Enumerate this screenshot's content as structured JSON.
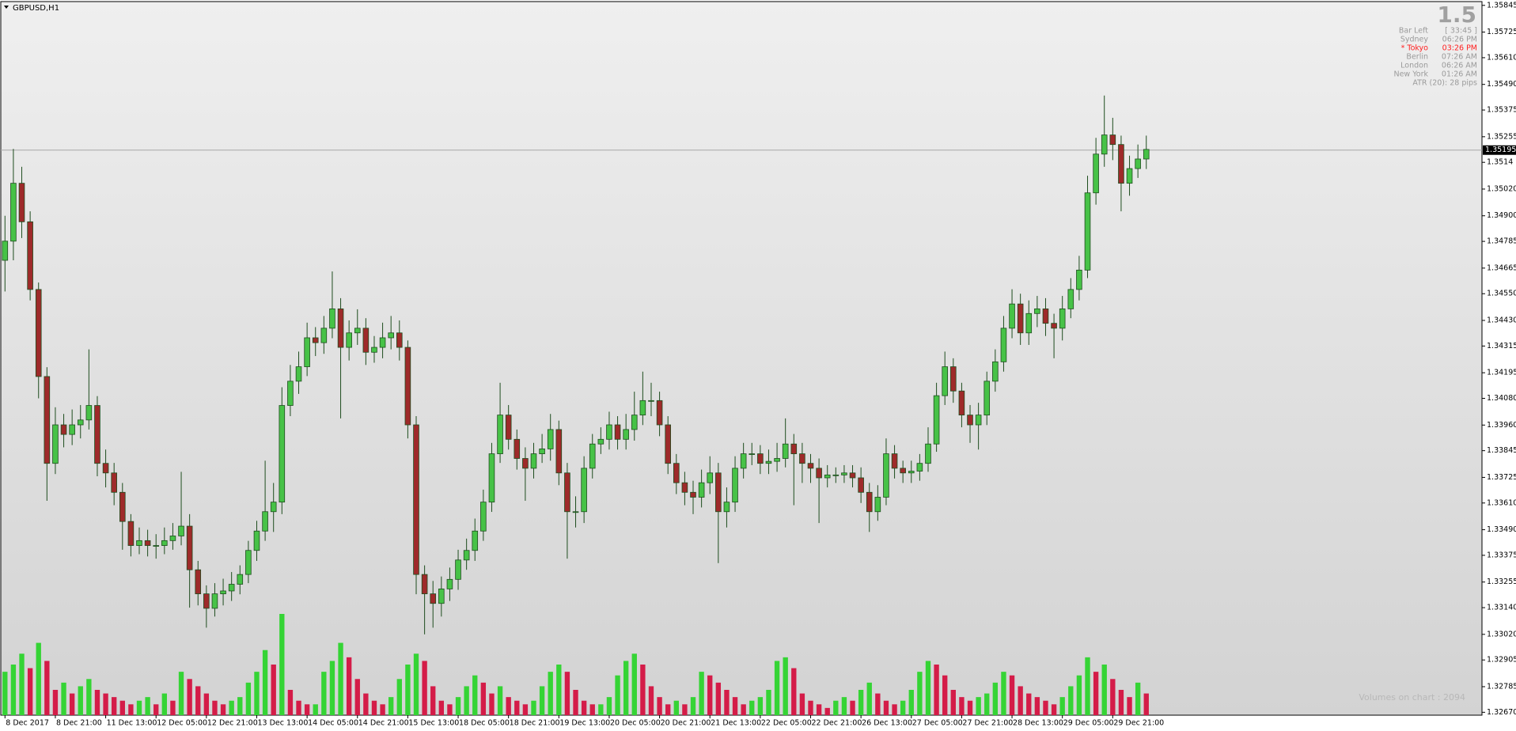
{
  "chart_data": {
    "type": "candlestick",
    "title": "GBPUSD,H1",
    "up_color": "#47c247",
    "down_color": "#9e2a2a",
    "wick_color": "#1e4d1e",
    "open": [
      1.347,
      1.34786,
      1.35046,
      1.34873,
      1.34569,
      1.34178,
      1.33788,
      1.33961,
      1.33918,
      1.33961,
      1.33983,
      1.34048,
      1.33788,
      1.33745,
      1.33658,
      1.33527,
      1.33419,
      1.33441,
      1.33419,
      1.33419,
      1.33441,
      1.33462,
      1.33506,
      1.3331,
      1.33202,
      1.33137,
      1.33202,
      1.33215,
      1.33245,
      1.33289,
      1.33397,
      1.33484,
      1.33571,
      1.33614,
      1.34048,
      1.34157,
      1.34222,
      1.34352,
      1.3433,
      1.34395,
      1.34482,
      1.34309,
      1.34374,
      1.34395,
      1.34287,
      1.34309,
      1.34352,
      1.34374,
      1.34309,
      1.33961,
      1.33289,
      1.33202,
      1.33159,
      1.33224,
      1.33267,
      1.33354,
      1.33397,
      1.33484,
      1.33614,
      1.33831,
      1.34005,
      1.33896,
      1.3381,
      1.33766,
      1.33831,
      1.33853,
      1.3394,
      1.33745,
      1.33571,
      1.33571,
      1.33766,
      1.33875,
      1.33896,
      1.33961,
      1.33896,
      1.3394,
      1.34005,
      1.3407,
      1.3407,
      1.33961,
      1.33788,
      1.33701,
      1.33658,
      1.33636,
      1.33701,
      1.33745,
      1.33571,
      1.33614,
      1.33766,
      1.33831,
      1.33831,
      1.33788,
      1.33797,
      1.3381,
      1.33875,
      1.33831,
      1.33788,
      1.33766,
      1.33723,
      1.33736,
      1.33736,
      1.33745,
      1.33723,
      1.33658,
      1.33571,
      1.33636,
      1.33831,
      1.33766,
      1.33745,
      1.33753,
      1.33788,
      1.33875,
      1.34092,
      1.34222,
      1.34113,
      1.34005,
      1.33961,
      1.34005,
      1.34157,
      1.34244,
      1.34395,
      1.34504,
      1.34374,
      1.34461,
      1.34482,
      1.34417,
      1.34395,
      1.34482,
      1.34569,
      1.34656,
      1.35003,
      1.35177,
      1.35263,
      1.3522,
      1.35046,
      1.35112,
      1.35155
    ],
    "high": [
      1.349,
      1.352,
      1.3512,
      1.3492,
      1.346,
      1.3422,
      1.3404,
      1.3401,
      1.3403,
      1.3405,
      1.343,
      1.3409,
      1.3385,
      1.3379,
      1.337,
      1.3356,
      1.335,
      1.3349,
      1.3347,
      1.335,
      1.3352,
      1.3375,
      1.3356,
      1.3335,
      1.3324,
      1.3325,
      1.3327,
      1.333,
      1.3333,
      1.3344,
      1.3353,
      1.338,
      1.337,
      1.3413,
      1.3423,
      1.3429,
      1.3442,
      1.344,
      1.3445,
      1.3465,
      1.3453,
      1.3443,
      1.3448,
      1.3444,
      1.3436,
      1.3442,
      1.3445,
      1.3443,
      1.3434,
      1.34,
      1.3333,
      1.3326,
      1.3328,
      1.3332,
      1.334,
      1.3345,
      1.3354,
      1.3367,
      1.3388,
      1.3415,
      1.3405,
      1.3394,
      1.3386,
      1.3388,
      1.3392,
      1.3401,
      1.3398,
      1.3379,
      1.3364,
      1.3382,
      1.3392,
      1.3395,
      1.3402,
      1.34,
      1.3401,
      1.3411,
      1.342,
      1.3415,
      1.3411,
      1.34,
      1.3383,
      1.3375,
      1.3371,
      1.3376,
      1.3382,
      1.3379,
      1.3368,
      1.3382,
      1.3388,
      1.3388,
      1.3387,
      1.3385,
      1.3388,
      1.3399,
      1.3392,
      1.3388,
      1.3383,
      1.3381,
      1.3378,
      1.3377,
      1.3378,
      1.3378,
      1.3377,
      1.337,
      1.3369,
      1.339,
      1.3387,
      1.338,
      1.338,
      1.3383,
      1.3395,
      1.3415,
      1.3429,
      1.3426,
      1.3415,
      1.3405,
      1.3406,
      1.342,
      1.343,
      1.3445,
      1.3457,
      1.3455,
      1.3452,
      1.3454,
      1.3453,
      1.3446,
      1.3454,
      1.3462,
      1.3472,
      1.3508,
      1.3525,
      1.3544,
      1.3534,
      1.3526,
      1.3517,
      1.3522,
      1.3526
    ],
    "low": [
      1.3456,
      1.347,
      1.348,
      1.3452,
      1.3408,
      1.3362,
      1.3374,
      1.3386,
      1.3387,
      1.339,
      1.3394,
      1.3373,
      1.3368,
      1.336,
      1.334,
      1.3337,
      1.3338,
      1.3337,
      1.3336,
      1.3338,
      1.334,
      1.3342,
      1.3314,
      1.3315,
      1.3305,
      1.331,
      1.3315,
      1.3317,
      1.332,
      1.3325,
      1.3335,
      1.3344,
      1.3348,
      1.3356,
      1.34,
      1.341,
      1.3418,
      1.3427,
      1.3428,
      1.3435,
      1.3399,
      1.3425,
      1.3432,
      1.3423,
      1.3424,
      1.3426,
      1.343,
      1.3425,
      1.339,
      1.332,
      1.3302,
      1.3305,
      1.331,
      1.3317,
      1.3322,
      1.3331,
      1.3335,
      1.3344,
      1.3357,
      1.3379,
      1.3385,
      1.3376,
      1.3362,
      1.3372,
      1.3379,
      1.338,
      1.3369,
      1.3336,
      1.335,
      1.3352,
      1.3372,
      1.3383,
      1.3385,
      1.3385,
      1.3385,
      1.3389,
      1.3396,
      1.34,
      1.3391,
      1.3374,
      1.3365,
      1.336,
      1.3356,
      1.3359,
      1.3365,
      1.3334,
      1.335,
      1.3357,
      1.3372,
      1.3378,
      1.3374,
      1.3374,
      1.3375,
      1.3377,
      1.336,
      1.337,
      1.337,
      1.3352,
      1.3368,
      1.337,
      1.337,
      1.3368,
      1.3361,
      1.3348,
      1.3353,
      1.336,
      1.3372,
      1.337,
      1.337,
      1.3371,
      1.3375,
      1.3384,
      1.3405,
      1.3406,
      1.3395,
      1.3388,
      1.3385,
      1.3396,
      1.3411,
      1.342,
      1.3435,
      1.3432,
      1.3432,
      1.344,
      1.3436,
      1.3426,
      1.3434,
      1.3444,
      1.3452,
      1.3462,
      1.3495,
      1.3512,
      1.3515,
      1.3492,
      1.3499,
      1.3507,
      1.3511
    ],
    "close": [
      1.34786,
      1.35046,
      1.34873,
      1.34569,
      1.34178,
      1.33788,
      1.33961,
      1.33918,
      1.33961,
      1.33983,
      1.34048,
      1.33788,
      1.33745,
      1.33658,
      1.33527,
      1.33419,
      1.33441,
      1.33419,
      1.33419,
      1.33441,
      1.33462,
      1.33506,
      1.3331,
      1.33202,
      1.33137,
      1.33202,
      1.33215,
      1.33245,
      1.33289,
      1.33397,
      1.33484,
      1.33571,
      1.33614,
      1.34048,
      1.34157,
      1.34222,
      1.34352,
      1.3433,
      1.34395,
      1.34482,
      1.34309,
      1.34374,
      1.34395,
      1.34287,
      1.34309,
      1.34352,
      1.34374,
      1.34309,
      1.33961,
      1.33289,
      1.33202,
      1.33159,
      1.33224,
      1.33267,
      1.33354,
      1.33397,
      1.33484,
      1.33614,
      1.33831,
      1.34005,
      1.33896,
      1.3381,
      1.33766,
      1.33831,
      1.33853,
      1.3394,
      1.33745,
      1.33571,
      1.33571,
      1.33766,
      1.33875,
      1.33896,
      1.33961,
      1.33896,
      1.3394,
      1.34005,
      1.3407,
      1.3407,
      1.33961,
      1.33788,
      1.33701,
      1.33658,
      1.33636,
      1.33701,
      1.33745,
      1.33571,
      1.33614,
      1.33766,
      1.33831,
      1.33831,
      1.33788,
      1.33797,
      1.3381,
      1.33875,
      1.33831,
      1.33788,
      1.33766,
      1.33723,
      1.33736,
      1.33736,
      1.33745,
      1.33723,
      1.33658,
      1.33571,
      1.33636,
      1.33831,
      1.33766,
      1.33745,
      1.33753,
      1.33788,
      1.33875,
      1.34092,
      1.34222,
      1.34113,
      1.34005,
      1.33961,
      1.34005,
      1.34157,
      1.34244,
      1.34395,
      1.34504,
      1.34374,
      1.34461,
      1.34482,
      1.34417,
      1.34395,
      1.34482,
      1.34569,
      1.34656,
      1.35003,
      1.35177,
      1.35263,
      1.3522,
      1.35046,
      1.35112,
      1.35155,
      1.35198
    ],
    "volume": {
      "up_color": "#35d435",
      "down_color": "#d41c48",
      "values": [
        1200,
        1400,
        1700,
        1300,
        2000,
        1500,
        700,
        900,
        600,
        800,
        1000,
        700,
        600,
        500,
        400,
        300,
        400,
        500,
        300,
        600,
        400,
        1200,
        1000,
        800,
        600,
        400,
        300,
        400,
        500,
        900,
        1200,
        1800,
        1400,
        2800,
        700,
        400,
        300,
        300,
        1200,
        1500,
        2000,
        1600,
        1000,
        600,
        400,
        300,
        500,
        1000,
        1400,
        1700,
        1500,
        800,
        400,
        300,
        500,
        800,
        1100,
        900,
        600,
        800,
        500,
        400,
        300,
        400,
        800,
        1200,
        1400,
        1200,
        700,
        400,
        300,
        300,
        500,
        1100,
        1500,
        1700,
        1400,
        800,
        500,
        300,
        400,
        300,
        500,
        1200,
        1100,
        900,
        700,
        500,
        300,
        400,
        500,
        700,
        1500,
        1600,
        1300,
        600,
        400,
        300,
        200,
        400,
        500,
        400,
        700,
        900,
        600,
        400,
        300,
        400,
        700,
        1200,
        1500,
        1400,
        1100,
        700,
        500,
        400,
        500,
        600,
        900,
        1200,
        1100,
        800,
        600,
        500,
        400,
        300,
        500,
        800,
        1100,
        1600,
        1200,
        1400,
        1000,
        700,
        500,
        900,
        600
      ]
    },
    "ylim": [
      1.32657,
      1.35862
    ],
    "yticks": [
      1.35845,
      1.35725,
      {
        "value": 1.3561,
        "label": "1.35610"
      },
      {
        "value": 1.3549,
        "label": "1.35490"
      },
      1.35375,
      1.35255,
      1.3514,
      {
        "value": 1.3502,
        "label": "1.35020"
      },
      {
        "value": 1.349,
        "label": "1.34900"
      },
      1.34785,
      1.34665,
      {
        "value": 1.3455,
        "label": "1.34550"
      },
      {
        "value": 1.3443,
        "label": "1.34430"
      },
      1.34315,
      1.34195,
      {
        "value": 1.3408,
        "label": "1.34080"
      },
      {
        "value": 1.3396,
        "label": "1.33960"
      },
      1.33845,
      1.33725,
      {
        "value": 1.3361,
        "label": "1.33610"
      },
      {
        "value": 1.3349,
        "label": "1.33490"
      },
      1.33375,
      1.33255,
      {
        "value": 1.3314,
        "label": "1.33140"
      },
      {
        "value": 1.3302,
        "label": "1.33020"
      },
      1.32905,
      1.32785,
      {
        "value": 1.3267,
        "label": "1.32670"
      }
    ],
    "xlim": [
      -0.5,
      176
    ],
    "xticks": [
      {
        "value": 0,
        "label": "8 Dec 2017"
      },
      {
        "value": 6,
        "label": "8 Dec 21:00"
      },
      {
        "value": 12,
        "label": "11 Dec 13:00"
      },
      {
        "value": 18,
        "label": "12 Dec 05:00"
      },
      {
        "value": 24,
        "label": "12 Dec 21:00"
      },
      {
        "value": 30,
        "label": "13 Dec 13:00"
      },
      {
        "value": 36,
        "label": "14 Dec 05:00"
      },
      {
        "value": 42,
        "label": "14 Dec 21:00"
      },
      {
        "value": 48,
        "label": "15 Dec 13:00"
      },
      {
        "value": 54,
        "label": "18 Dec 05:00"
      },
      {
        "value": 60,
        "label": "18 Dec 21:00"
      },
      {
        "value": 66,
        "label": "19 Dec 13:00"
      },
      {
        "value": 72,
        "label": "20 Dec 05:00"
      },
      {
        "value": 78,
        "label": "20 Dec 21:00"
      },
      {
        "value": 84,
        "label": "21 Dec 13:00"
      },
      {
        "value": 90,
        "label": "22 Dec 05:00"
      },
      {
        "value": 96,
        "label": "22 Dec 21:00"
      },
      {
        "value": 102,
        "label": "26 Dec 13:00"
      },
      {
        "value": 108,
        "label": "27 Dec 05:00"
      },
      {
        "value": 114,
        "label": "27 Dec 21:00"
      },
      {
        "value": 120,
        "label": "28 Dec 13:00"
      },
      {
        "value": 126,
        "label": "29 Dec 05:00"
      },
      {
        "value": 132,
        "label": "29 Dec 21:00"
      }
    ],
    "current_price": 1.35195,
    "info_panel": {
      "spread": 1.5,
      "rows": [
        {
          "label": "Bar Left",
          "value": "[ 33:45 ]",
          "color": "#9a9a9a"
        },
        {
          "label": "Sydney",
          "value": "06:26 PM",
          "color": "#9a9a9a"
        },
        {
          "label": "* Tokyo",
          "value": "03:26 PM",
          "color": "#ff2020"
        },
        {
          "label": "Berlin",
          "value": "07:26 AM",
          "color": "#9a9a9a"
        },
        {
          "label": "London",
          "value": "06:26 AM",
          "color": "#9a9a9a"
        },
        {
          "label": "New York",
          "value": "01:26 AM",
          "color": "#9a9a9a"
        }
      ],
      "atr": "ATR (20): 28 pips"
    },
    "footer": "Volumes on chart : 2094"
  }
}
